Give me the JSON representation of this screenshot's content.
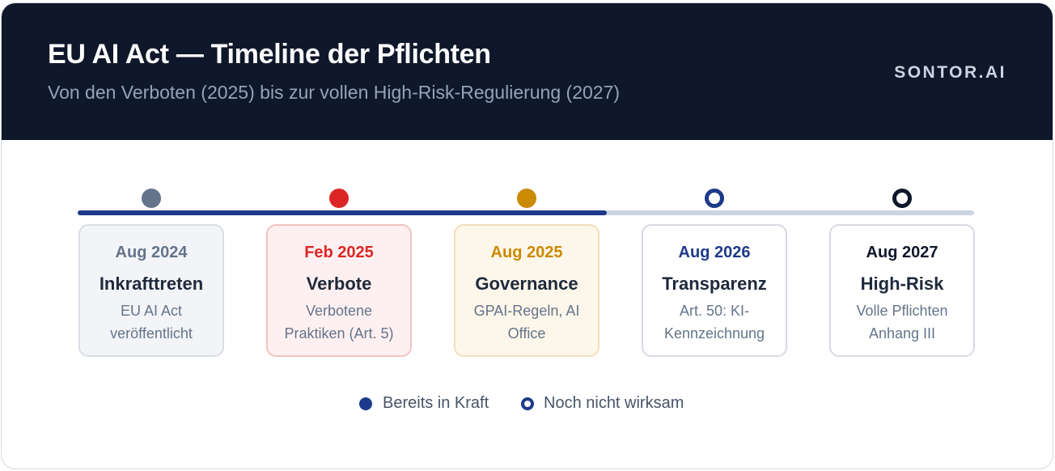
{
  "header": {
    "title": "EU AI Act — Timeline der Pflichten",
    "subtitle": "Von den Verboten (2025) bis zur vollen High-Risk-Regulierung (2027)",
    "brand": "SONTOR.AI"
  },
  "timeline": {
    "progress_fraction": 0.59,
    "stages": [
      {
        "date": "Aug 2024",
        "name": "Inkrafttreten",
        "desc_line1": "EU AI Act",
        "desc_line2": "veröffentlicht",
        "status": "in_force",
        "color": "#64748b",
        "bg": "#f3f4f7",
        "border": "#d9dee6"
      },
      {
        "date": "Feb 2025",
        "name": "Verbote",
        "desc_line1": "Verbotene",
        "desc_line2": "Praktiken (Art. 5)",
        "status": "in_force",
        "color": "#dc2626",
        "bg": "#fef0f0",
        "border": "#f5c2c2"
      },
      {
        "date": "Aug 2025",
        "name": "Governance",
        "desc_line1": "GPAI-Regeln, AI",
        "desc_line2": "Office",
        "status": "in_force",
        "color": "#ca8a04",
        "bg": "#fdf6ea",
        "border": "#f3dfb8"
      },
      {
        "date": "Aug 2026",
        "name": "Transparenz",
        "desc_line1": "Art. 50: KI-",
        "desc_line2": "Kennzeichnung",
        "status": "pending",
        "color": "#1e3a8a",
        "bg": "#ffffff",
        "border": "#d6dbe2"
      },
      {
        "date": "Aug 2027",
        "name": "High-Risk",
        "desc_line1": "Volle Pflichten",
        "desc_line2": "Anhang III",
        "status": "pending",
        "color": "#0f172a",
        "bg": "#ffffff",
        "border": "#d6dbe2"
      }
    ]
  },
  "legend": {
    "in_force_label": "Bereits in Kraft",
    "pending_label": "Noch nicht wirksam",
    "color": "#1e3a8a"
  }
}
